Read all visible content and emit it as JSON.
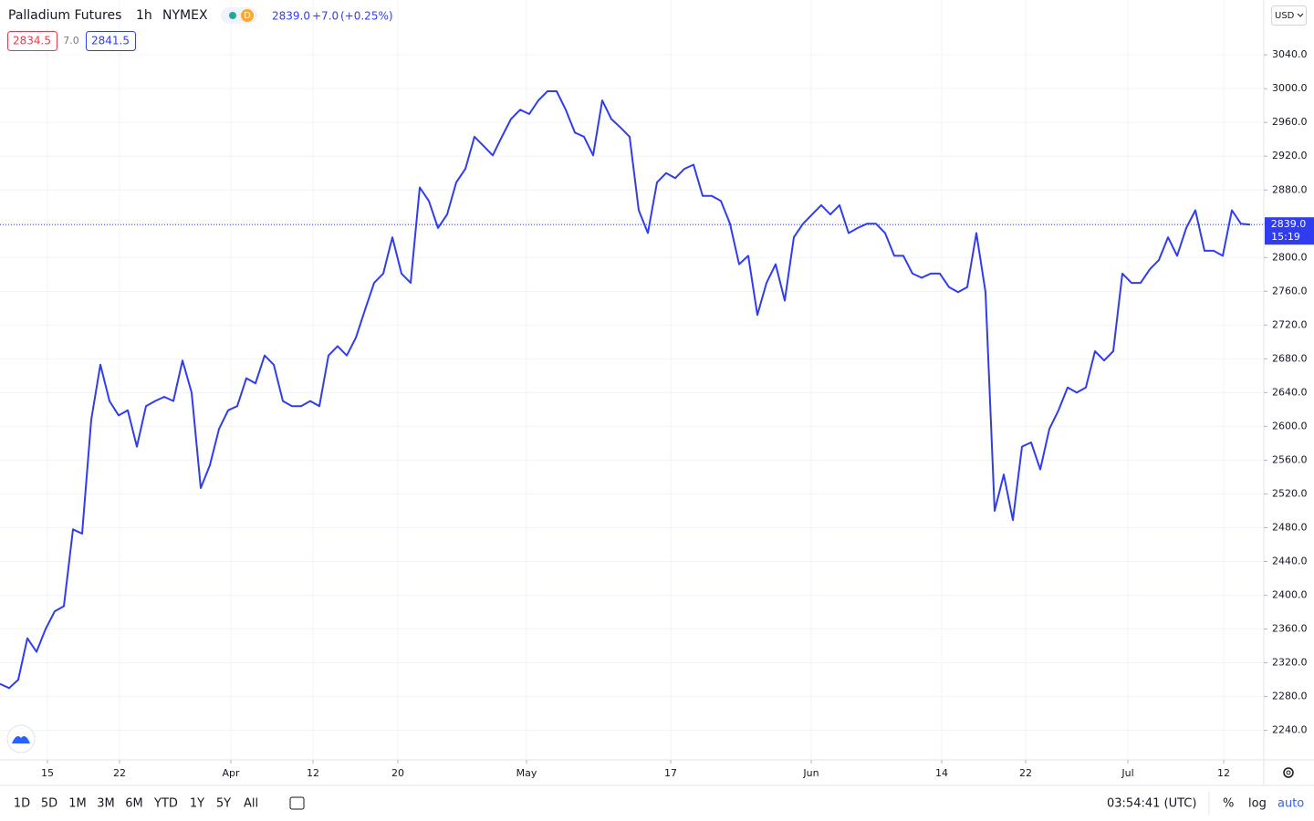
{
  "chart_data": {
    "type": "line",
    "color": "#2f3cf0",
    "grid": true,
    "values": [
      2295,
      2290,
      2300,
      2349,
      2333,
      2360,
      2381,
      2387,
      2478,
      2473,
      2608,
      2673,
      2630,
      2613,
      2619,
      2576,
      2624,
      2630,
      2635,
      2630,
      2678,
      2640,
      2527,
      2554,
      2597,
      2619,
      2624,
      2657,
      2651,
      2684,
      2673,
      2630,
      2624,
      2624,
      2630,
      2624,
      2684,
      2695,
      2684,
      2705,
      2738,
      2770,
      2781,
      2824,
      2781,
      2770,
      2883,
      2867,
      2835,
      2851,
      2889,
      2905,
      2943,
      2932,
      2921,
      2943,
      2964,
      2975,
      2970,
      2986,
      2997,
      2997,
      2975,
      2948,
      2943,
      2921,
      2986,
      2964,
      2954,
      2943,
      2856,
      2829,
      2889,
      2900,
      2894,
      2905,
      2910,
      2873,
      2873,
      2867,
      2840,
      2792,
      2802,
      2732,
      2770,
      2792,
      2749,
      2824,
      2840,
      2851,
      2862,
      2851,
      2862,
      2829,
      2835,
      2840,
      2840,
      2829,
      2802,
      2802,
      2781,
      2776,
      2781,
      2781,
      2765,
      2759,
      2765,
      2829,
      2759,
      2500,
      2543,
      2489,
      2576,
      2581,
      2549,
      2597,
      2619,
      2646,
      2640,
      2646,
      2689,
      2678,
      2689,
      2781,
      2770,
      2770,
      2786,
      2797,
      2824,
      2802,
      2835,
      2856,
      2808,
      2808,
      2802,
      2856,
      2840,
      2839
    ],
    "xlim": [
      0,
      138.5
    ],
    "xticks": [
      {
        "value": 5.2,
        "label": "15"
      },
      {
        "value": 13.1,
        "label": "22"
      },
      {
        "value": 25.3,
        "label": "Apr"
      },
      {
        "value": 34.3,
        "label": "12"
      },
      {
        "value": 43.6,
        "label": "20"
      },
      {
        "value": 57.7,
        "label": "May"
      },
      {
        "value": 73.5,
        "label": "17"
      },
      {
        "value": 88.9,
        "label": "Jun"
      },
      {
        "value": 103.2,
        "label": "14"
      },
      {
        "value": 112.4,
        "label": "22"
      },
      {
        "value": 123.6,
        "label": "Jul"
      },
      {
        "value": 134.1,
        "label": "12"
      }
    ],
    "ylim": [
      2205,
      3105
    ],
    "yticks": [
      {
        "value": 2240,
        "label": "2240.0"
      },
      {
        "value": 2280,
        "label": "2280.0"
      },
      {
        "value": 2320,
        "label": "2320.0"
      },
      {
        "value": 2360,
        "label": "2360.0"
      },
      {
        "value": 2400,
        "label": "2400.0"
      },
      {
        "value": 2440,
        "label": "2440.0"
      },
      {
        "value": 2480,
        "label": "2480.0"
      },
      {
        "value": 2520,
        "label": "2520.0"
      },
      {
        "value": 2560,
        "label": "2560.0"
      },
      {
        "value": 2600,
        "label": "2600.0"
      },
      {
        "value": 2640,
        "label": "2640.0"
      },
      {
        "value": 2680,
        "label": "2680.0"
      },
      {
        "value": 2720,
        "label": "2720.0"
      },
      {
        "value": 2760,
        "label": "2760.0"
      },
      {
        "value": 2800,
        "label": "2800.0"
      },
      {
        "value": 2840,
        "label": "2840.0"
      },
      {
        "value": 2880,
        "label": "2880.0"
      },
      {
        "value": 2920,
        "label": "2920.0"
      },
      {
        "value": 2960,
        "label": "2960.0"
      },
      {
        "value": 3000,
        "label": "3000.0"
      },
      {
        "value": 3040,
        "label": "3040.0"
      }
    ],
    "last_price": {
      "value": 2839,
      "label": "2839.0"
    },
    "countdown": "15:19"
  },
  "header": {
    "symbol": "Palladium Futures",
    "interval": "1h",
    "exchange": "NYMEX",
    "badge": "D",
    "change": "+7.0",
    "change_pct": "(+0.25%)",
    "bid": "2834.5",
    "spread": "7.0",
    "ask": "2841.5",
    "currency": "USD"
  },
  "toolbar": {
    "ranges": [
      "1D",
      "5D",
      "1M",
      "3M",
      "6M",
      "YTD",
      "1Y",
      "5Y",
      "All"
    ],
    "clock": "03:54:41 (UTC)",
    "percent": "%",
    "log": "log",
    "auto": "auto"
  }
}
